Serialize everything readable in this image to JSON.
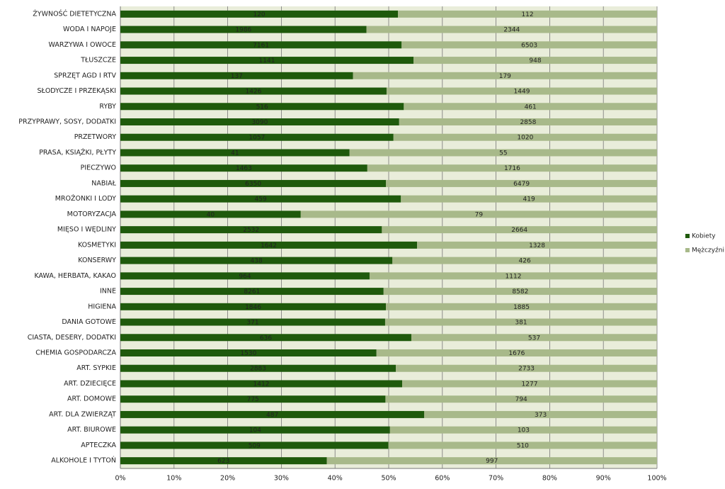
{
  "chart_data": {
    "type": "bar",
    "orientation": "horizontal",
    "stacked_percent": true,
    "categories": [
      "ŻYWNOŚĆ DIETETYCZNA",
      "WODA I NAPOJE",
      "WARZYWA I OWOCE",
      "TŁUSZCZE",
      "SPRZĘT AGD I RTV",
      "SŁODYCZE I PRZEKĄSKI",
      "RYBY",
      "PRZYPRAWY, SOSY, DODATKI",
      "PRZETWORY",
      "PRASA, KSIĄŻKI, PŁYTY",
      "PIECZYWO",
      "NABIAŁ",
      "MROŻONKI I LODY",
      "MOTORYZACJA",
      "MIĘSO I WĘDLINY",
      "KOSMETYKI",
      "KONSERWY",
      "KAWA, HERBATA, KAKAO",
      "INNE",
      "HIGIENA",
      "DANIA GOTOWE",
      "CIASTA, DESERY, DODATKI",
      "CHEMIA GOSPODARCZA",
      "ART. SYPKIE",
      "ART. DZIECIĘCE",
      "ART. DOMOWE",
      "ART. DLA ZWIERZĄT",
      "ART. BIUROWE",
      "APTECZKA",
      "ALKOHOLE I TYTOŃ"
    ],
    "series": [
      {
        "name": "Kobiety",
        "color": "#1f5a0c",
        "label_color": "#ffffff",
        "values": [
          120,
          1986,
          7161,
          1141,
          137,
          1426,
          516,
          3090,
          1057,
          41,
          1463,
          6350,
          459,
          40,
          2532,
          1642,
          438,
          964,
          8261,
          1846,
          371,
          636,
          1530,
          2883,
          1412,
          775,
          487,
          104,
          509,
          623
        ]
      },
      {
        "name": "Mężczyźni",
        "color": "#a8b98a",
        "label_color": "#000000",
        "values": [
          112,
          2344,
          6503,
          948,
          179,
          1449,
          461,
          2858,
          1020,
          55,
          1716,
          6479,
          419,
          79,
          2664,
          1328,
          426,
          1112,
          8582,
          1885,
          381,
          537,
          1676,
          2733,
          1277,
          794,
          373,
          103,
          510,
          997
        ]
      }
    ],
    "xlim": [
      0,
      100
    ],
    "xticks": [
      {
        "value": 0,
        "label": "0%"
      },
      {
        "value": 10,
        "label": "10%"
      },
      {
        "value": 20,
        "label": "20%"
      },
      {
        "value": 30,
        "label": "30%"
      },
      {
        "value": 40,
        "label": "40%"
      },
      {
        "value": 50,
        "label": "50%"
      },
      {
        "value": 60,
        "label": "60%"
      },
      {
        "value": 70,
        "label": "70%"
      },
      {
        "value": 80,
        "label": "80%"
      },
      {
        "value": 90,
        "label": "90%"
      },
      {
        "value": 100,
        "label": "100%"
      }
    ],
    "grid": true,
    "legend": "right"
  }
}
